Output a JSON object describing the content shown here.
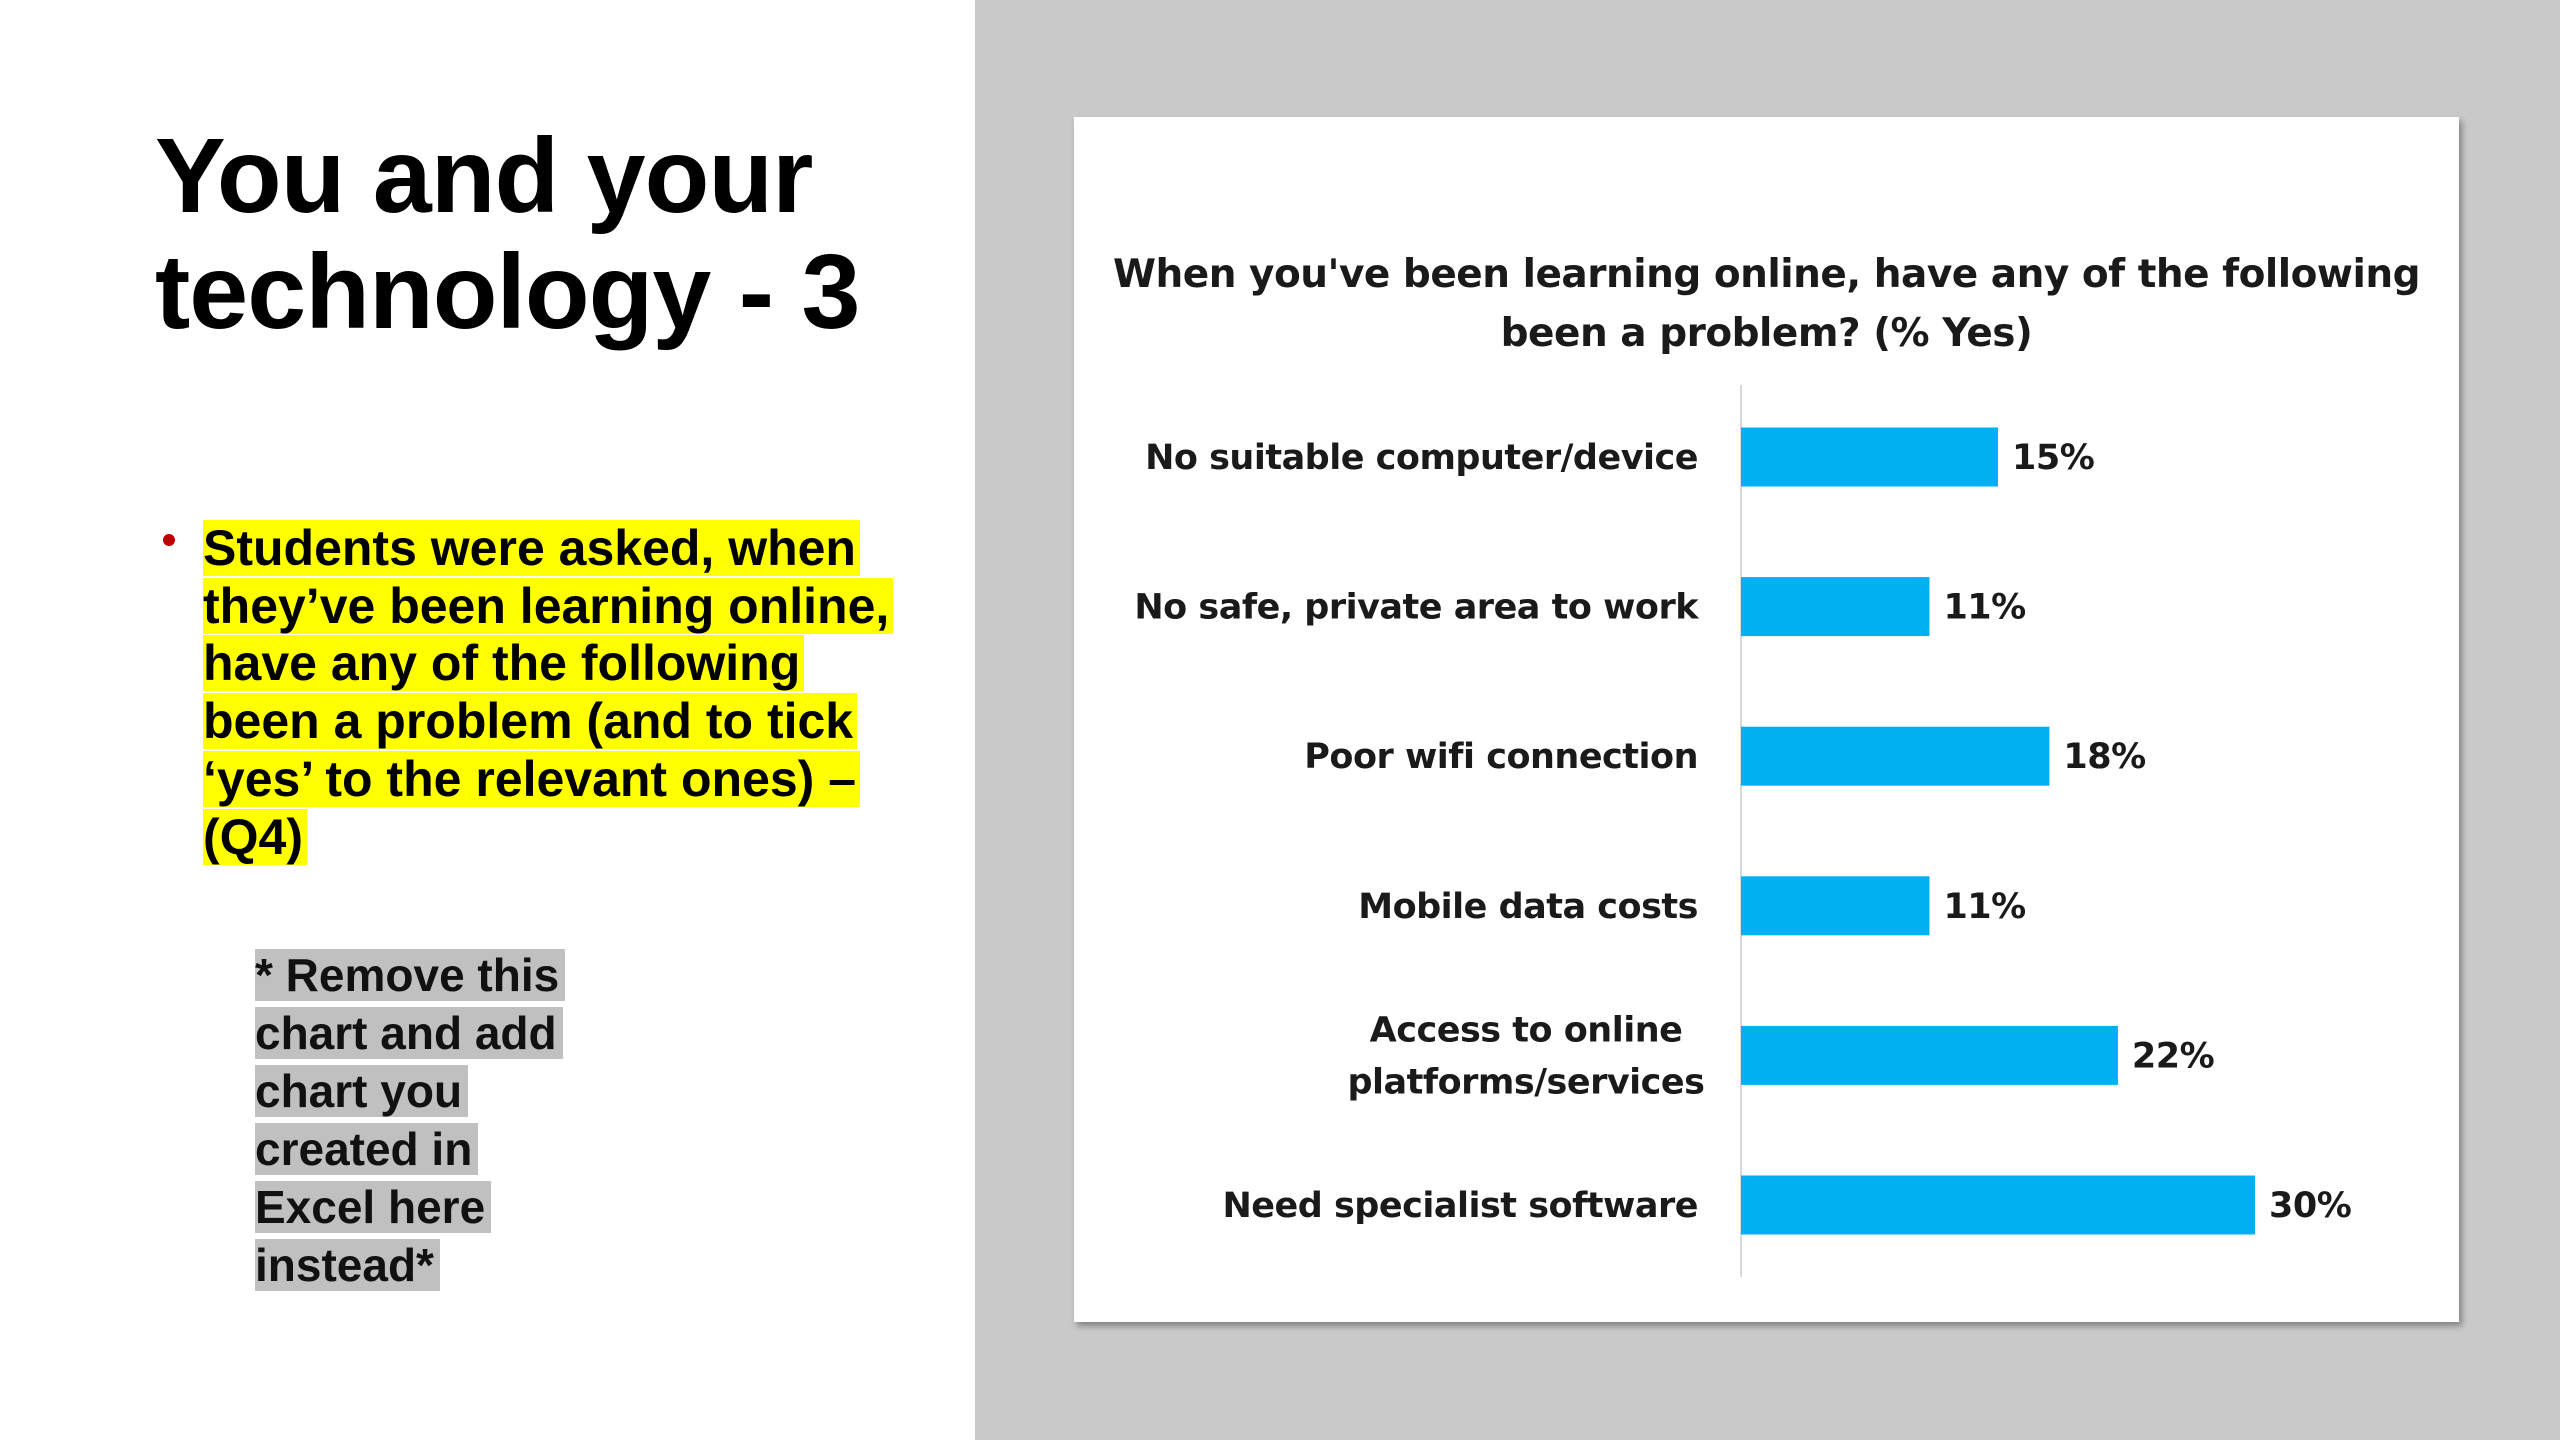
{
  "slide": {
    "title": "You and your technology - 3",
    "bullet": "Students were asked, when they’ve been learning online, have any of the following been a problem (and to tick ‘yes’ to the relevant ones) – (Q4)",
    "note": "* Remove this chart and add chart you created in Excel here instead*"
  },
  "colors": {
    "bar": "#00b0f0",
    "bullet": "#c00000",
    "highlight": "#ffff00",
    "note_highlight": "#c0c0c0",
    "panel": "#c8c9c8"
  },
  "chart_data": {
    "type": "bar",
    "orientation": "horizontal",
    "title": "When you've been learning online, have any of the following been a problem? (% Yes)",
    "categories": [
      [
        "No suitable computer/device"
      ],
      [
        "No safe, private area to work"
      ],
      [
        "Poor wifi connection"
      ],
      [
        "Mobile data costs"
      ],
      [
        "Access to online",
        "platforms/services"
      ],
      [
        "Need specialist software"
      ]
    ],
    "values": [
      15,
      11,
      18,
      11,
      22,
      30
    ],
    "value_labels": [
      "15%",
      "11%",
      "18%",
      "11%",
      "22%",
      "30%"
    ],
    "unit": "%",
    "xlim": [
      0,
      30
    ],
    "grid": false,
    "legend": "none"
  }
}
